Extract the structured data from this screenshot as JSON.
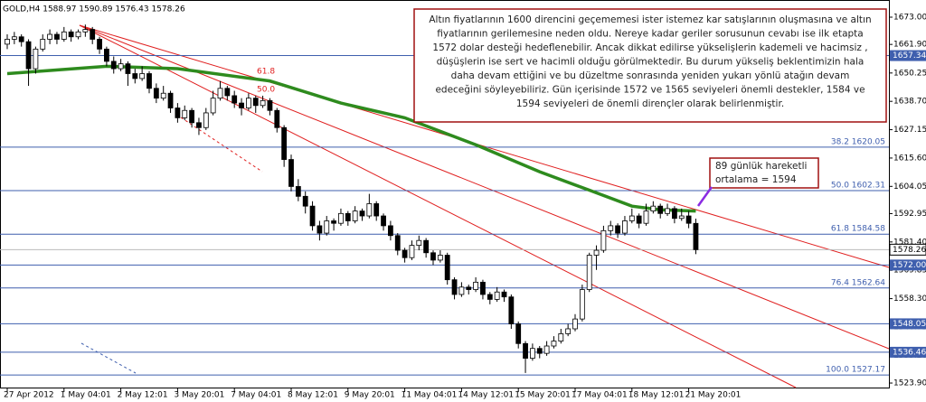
{
  "chart_data": {
    "type": "candlestick",
    "title": "GOLD,H4  1588.97 1590.89 1576.43 1578.26",
    "ylim": [
      1521.7,
      1680
    ],
    "yticks": [
      {
        "value": 1673,
        "label": "1673.00"
      },
      {
        "value": 1661.9,
        "label": "1661.90"
      },
      1650.25,
      {
        "value": 1638.7,
        "label": "1638.70"
      },
      1627.15,
      {
        "value": 1615.6,
        "label": "1615.60"
      },
      1604.05,
      1592.95,
      {
        "value": 1581.4,
        "label": "1581.40"
      },
      1569.85,
      {
        "value": 1558.3,
        "label": "1558.30"
      },
      1546.75,
      {
        "value": 1535.2,
        "label": "1535.20"
      },
      {
        "value": 1523.9,
        "label": "1523.90"
      }
    ],
    "up_color": "#ffffff",
    "down_color": "#000000",
    "level_color": "#3f5fae",
    "ma_color": "#2e8b1e",
    "categories": [
      "27 Apr 2012",
      null,
      null,
      null,
      null,
      null,
      null,
      null,
      "1 May 04:01",
      null,
      null,
      null,
      null,
      null,
      null,
      null,
      "2 May 12:01",
      null,
      null,
      null,
      null,
      null,
      null,
      null,
      "3 May 20:01",
      null,
      null,
      null,
      null,
      null,
      null,
      null,
      "7 May 04:01",
      null,
      null,
      null,
      null,
      null,
      null,
      null,
      "8 May 12:01",
      null,
      null,
      null,
      null,
      null,
      null,
      null,
      "9 May 20:01",
      null,
      null,
      null,
      null,
      null,
      null,
      null,
      "11 May 04:01",
      null,
      null,
      null,
      null,
      null,
      null,
      null,
      "14 May 12:01",
      null,
      null,
      null,
      null,
      null,
      null,
      null,
      "15 May 20:01",
      null,
      null,
      null,
      null,
      null,
      null,
      null,
      "17 May 04:01",
      null,
      null,
      null,
      null,
      null,
      null,
      null,
      "18 May 12:01",
      null,
      null,
      null,
      null,
      null,
      null,
      null,
      "21 May 20:01",
      null
    ],
    "candles": [
      [
        1662,
        1666,
        1660,
        1664
      ],
      [
        1664,
        1667,
        1662,
        1665
      ],
      [
        1665,
        1666,
        1661,
        1663
      ],
      [
        1663,
        1664,
        1645,
        1652
      ],
      [
        1652,
        1661,
        1650,
        1660
      ],
      [
        1660,
        1666,
        1659,
        1664
      ],
      [
        1664,
        1668,
        1662,
        1666
      ],
      [
        1666,
        1667,
        1662,
        1664
      ],
      [
        1664,
        1669,
        1663,
        1667
      ],
      [
        1667,
        1668,
        1663,
        1665
      ],
      [
        1665,
        1668,
        1664,
        1667
      ],
      [
        1667,
        1670,
        1665,
        1668
      ],
      [
        1668,
        1669,
        1662,
        1664
      ],
      [
        1664,
        1665,
        1658,
        1660
      ],
      [
        1660,
        1661,
        1653,
        1655
      ],
      [
        1655,
        1657,
        1650,
        1652
      ],
      [
        1652,
        1656,
        1651,
        1654
      ],
      [
        1654,
        1655,
        1645,
        1650
      ],
      [
        1650,
        1652,
        1646,
        1648
      ],
      [
        1648,
        1653,
        1647,
        1650
      ],
      [
        1650,
        1651,
        1642,
        1644
      ],
      [
        1644,
        1646,
        1638,
        1640
      ],
      [
        1640,
        1645,
        1639,
        1642
      ],
      [
        1642,
        1643,
        1634,
        1636
      ],
      [
        1636,
        1638,
        1630,
        1632
      ],
      [
        1632,
        1637,
        1631,
        1635
      ],
      [
        1635,
        1636,
        1628,
        1630
      ],
      [
        1630,
        1632,
        1625,
        1628
      ],
      [
        1628,
        1636,
        1627,
        1634
      ],
      [
        1634,
        1643,
        1633,
        1640
      ],
      [
        1640,
        1647,
        1639,
        1644
      ],
      [
        1644,
        1645,
        1639,
        1641
      ],
      [
        1641,
        1643,
        1636,
        1638
      ],
      [
        1638,
        1640,
        1633,
        1636
      ],
      [
        1636,
        1642,
        1635,
        1640
      ],
      [
        1640,
        1641,
        1634,
        1637
      ],
      [
        1637,
        1641,
        1636,
        1639
      ],
      [
        1639,
        1640,
        1633,
        1635
      ],
      [
        1635,
        1636,
        1626,
        1628
      ],
      [
        1628,
        1629,
        1612,
        1615
      ],
      [
        1615,
        1617,
        1602,
        1604
      ],
      [
        1604,
        1607,
        1598,
        1600
      ],
      [
        1600,
        1602,
        1593,
        1596
      ],
      [
        1596,
        1598,
        1586,
        1588
      ],
      [
        1588,
        1590,
        1582,
        1585
      ],
      [
        1585,
        1592,
        1584,
        1590
      ],
      [
        1590,
        1591,
        1586,
        1589
      ],
      [
        1589,
        1595,
        1588,
        1593
      ],
      [
        1593,
        1594,
        1588,
        1590
      ],
      [
        1590,
        1596,
        1589,
        1594
      ],
      [
        1594,
        1595,
        1590,
        1592
      ],
      [
        1592,
        1601,
        1591,
        1597
      ],
      [
        1597,
        1598,
        1590,
        1592
      ],
      [
        1592,
        1593,
        1586,
        1588
      ],
      [
        1588,
        1590,
        1582,
        1584
      ],
      [
        1584,
        1585,
        1576,
        1578
      ],
      [
        1578,
        1579,
        1573,
        1575
      ],
      [
        1575,
        1582,
        1574,
        1580
      ],
      [
        1580,
        1584,
        1578,
        1582
      ],
      [
        1582,
        1583,
        1575,
        1577
      ],
      [
        1577,
        1578,
        1572,
        1574
      ],
      [
        1574,
        1578,
        1573,
        1576
      ],
      [
        1576,
        1577,
        1564,
        1566
      ],
      [
        1566,
        1567,
        1558,
        1560
      ],
      [
        1560,
        1565,
        1559,
        1563
      ],
      [
        1563,
        1564,
        1560,
        1562
      ],
      [
        1562,
        1567,
        1561,
        1565
      ],
      [
        1565,
        1566,
        1558,
        1560
      ],
      [
        1560,
        1561,
        1556,
        1558
      ],
      [
        1558,
        1563,
        1557,
        1561
      ],
      [
        1561,
        1562,
        1557,
        1559
      ],
      [
        1559,
        1560,
        1546,
        1548
      ],
      [
        1548,
        1549,
        1538,
        1540
      ],
      [
        1540,
        1541,
        1528,
        1534
      ],
      [
        1534,
        1540,
        1533,
        1538
      ],
      [
        1538,
        1539,
        1534,
        1536
      ],
      [
        1536,
        1541,
        1535,
        1539
      ],
      [
        1539,
        1543,
        1538,
        1541
      ],
      [
        1541,
        1546,
        1540,
        1544
      ],
      [
        1544,
        1548,
        1543,
        1546
      ],
      [
        1546,
        1552,
        1545,
        1550
      ],
      [
        1550,
        1564,
        1549,
        1562
      ],
      [
        1562,
        1577,
        1561,
        1576
      ],
      [
        1576,
        1580,
        1570,
        1578
      ],
      [
        1578,
        1588,
        1577,
        1586
      ],
      [
        1586,
        1590,
        1584,
        1588
      ],
      [
        1588,
        1589,
        1583,
        1585
      ],
      [
        1585,
        1592,
        1584,
        1590
      ],
      [
        1590,
        1595,
        1589,
        1592
      ],
      [
        1592,
        1593,
        1587,
        1589
      ],
      [
        1589,
        1597,
        1588,
        1594
      ],
      [
        1594,
        1598,
        1593,
        1596
      ],
      [
        1596,
        1597,
        1591,
        1593
      ],
      [
        1593,
        1597,
        1592,
        1595
      ],
      [
        1595,
        1596,
        1589,
        1591
      ],
      [
        1591,
        1595,
        1590,
        1592
      ],
      [
        1592,
        1594,
        1587,
        1589
      ],
      [
        1588.97,
        1590.89,
        1576.43,
        1578.26
      ]
    ],
    "ma": {
      "x": [
        0,
        14,
        24,
        37,
        47,
        56,
        66,
        75,
        82,
        88,
        92,
        97
      ],
      "values": [
        1650,
        1653,
        1652,
        1647,
        1638,
        1632,
        1621,
        1610,
        1602.5,
        1596,
        1594.5,
        1594
      ]
    },
    "fib_levels": [
      {
        "value": 1620.05,
        "label": "38.2 1620.05"
      },
      {
        "value": 1602.31,
        "label": "50.0 1602.31"
      },
      {
        "value": 1584.58,
        "label": "61.8 1584.58"
      },
      {
        "value": 1562.64,
        "label": "76.4 1562.64"
      },
      {
        "value": 1527.17,
        "label": "100.0 1527.17"
      }
    ],
    "price_levels": [
      1657.34,
      {
        "value": 1572,
        "label": "1572.00"
      },
      1548.05,
      1536.46
    ],
    "current_price": 1578.26,
    "fib_small_labels": [
      "61.8",
      "50.0"
    ],
    "note": [
      "Altın fiyatlarının 1600 direncini geçememesi ister istemez kar satışlarının oluşmasına ve altın",
      "fiyatlarının gerilemesine neden oldu. Nereye kadar geriler sorusunun cevabı ise ilk etapta",
      "1572 dolar desteği hedeflenebilir. Ancak dikkat edilirse yükselişlerin kademeli ve hacimsiz ,",
      "düşüşlerin ise sert ve hacimli olduğu görülmektedir. Bu durum yükseliş beklentimizin hala",
      "daha devam ettiğini ve bu düzeltme sonrasında yeniden yukarı yönlü atağın devam",
      "edeceğini söyleyebiliriz. Gün içerisinde 1572 ve 1565 seviyeleri önemli destekler, 1584 ve",
      "1594 seviyeleri de önemli dirençler olarak belirlenmiştir."
    ],
    "callout": [
      "89 günlük hareketli",
      "ortalama = 1594"
    ]
  }
}
